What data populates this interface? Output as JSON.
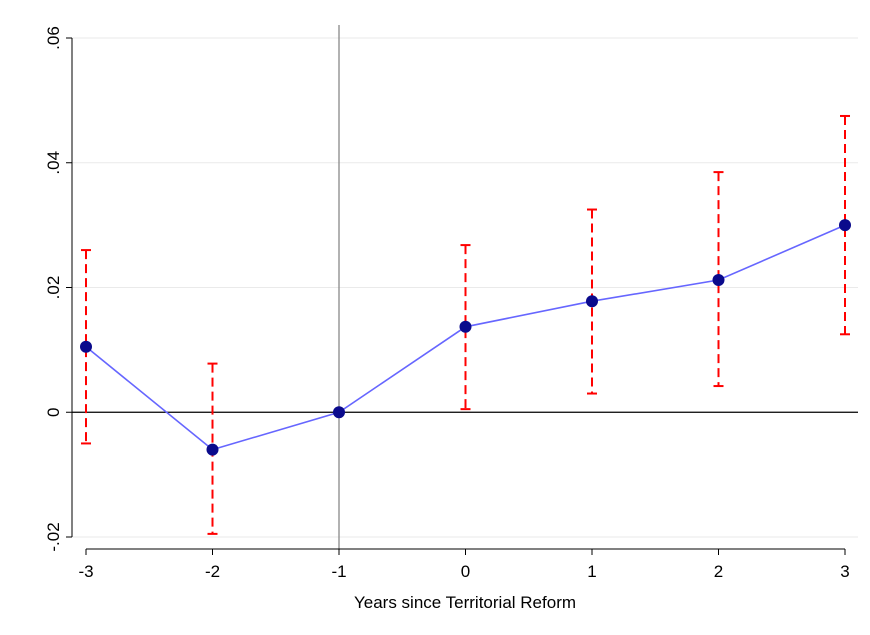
{
  "chart_data": {
    "type": "line",
    "title": "",
    "xlabel": "Years since Territorial Reform",
    "ylabel": "",
    "x": [
      -3,
      -2,
      -1,
      0,
      1,
      2,
      3
    ],
    "series": [
      {
        "values": [
          0.0105,
          -0.006,
          0.0,
          0.0137,
          0.0178,
          0.0212,
          0.03
        ],
        "ci_lower": [
          -0.005,
          -0.0195,
          null,
          0.0005,
          0.003,
          0.0042,
          0.0125
        ],
        "ci_upper": [
          0.026,
          0.0078,
          null,
          0.0268,
          0.0325,
          0.0385,
          0.0475
        ],
        "color": "#6666ff",
        "marker_color": "#0a0a8c",
        "ci_color": "#ff0000"
      }
    ],
    "xlim": [
      -3,
      3
    ],
    "ylim": [
      -0.02,
      0.06
    ],
    "xticks": [
      "-3",
      "-2",
      "-1",
      "0",
      "1",
      "2",
      "3"
    ],
    "yticks": [
      {
        "value": -0.02,
        "label": "-.02"
      },
      {
        "value": 0,
        "label": "0"
      },
      {
        "value": 0.02,
        "label": ".02"
      },
      {
        "value": 0.04,
        "label": ".04"
      },
      {
        "value": 0.06,
        "label": ".06"
      }
    ],
    "reference_vline_x": -1,
    "reference_hline_y": 0,
    "grid": true,
    "gridline_color": "#eaeaea"
  }
}
